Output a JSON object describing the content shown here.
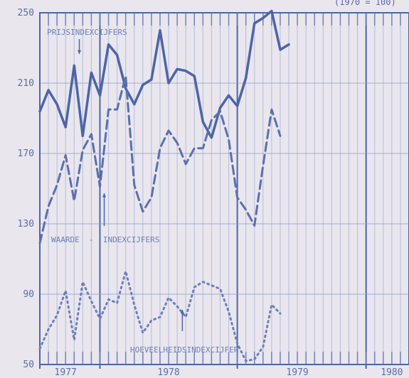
{
  "chart_data": {
    "type": "line",
    "corner_note": "(1970 = 100)",
    "ylim": [
      50,
      250
    ],
    "yticks": [
      50,
      90,
      130,
      170,
      210,
      250
    ],
    "ytick_labels": [
      "50",
      "90",
      "130",
      "170",
      "210",
      "250"
    ],
    "xlim": [
      0,
      43
    ],
    "year_labels": [
      {
        "label": "1977",
        "x": 3
      },
      {
        "label": "1978",
        "x": 15
      },
      {
        "label": "1979",
        "x": 30
      },
      {
        "label": "1980",
        "x": 41
      }
    ],
    "series": [
      {
        "name": "PRIJSINDEXCIJFERS",
        "style": "solid",
        "color": "#4d65a6",
        "x": [
          0,
          1,
          2,
          3,
          4,
          5,
          6,
          7,
          8,
          9,
          10,
          11,
          12,
          13,
          14,
          15,
          16,
          17,
          18,
          19,
          20,
          21,
          22,
          23,
          24,
          25,
          26,
          27,
          28,
          29,
          30,
          31,
          32,
          33,
          34
        ],
        "values": [
          194,
          206,
          198,
          185,
          220,
          180,
          216,
          203,
          232,
          226,
          207,
          198,
          209,
          212,
          240,
          210,
          218,
          217,
          214,
          188,
          179,
          196,
          203,
          197,
          213,
          244,
          247,
          251,
          229,
          232,
          null,
          null,
          null,
          null,
          null
        ]
      },
      {
        "name": "WAARDE - INDEXCIJFERS",
        "style": "dashed",
        "color": "#5a70ae",
        "x": [
          0,
          1,
          2,
          3,
          4,
          5,
          6,
          7,
          8,
          9,
          10,
          11,
          12,
          13,
          14,
          15,
          16,
          17,
          18,
          19,
          20,
          21,
          22,
          23,
          24,
          25,
          26,
          27,
          28,
          29,
          30
        ],
        "values": [
          119,
          140,
          152,
          169,
          143,
          172,
          181,
          151,
          195,
          195,
          214,
          152,
          137,
          145,
          173,
          183,
          176,
          164,
          173,
          173,
          189,
          194,
          178,
          145,
          138,
          129,
          163,
          195,
          180,
          null,
          null
        ]
      },
      {
        "name": "HOEVEELHEIDSINDEXCIJFER",
        "style": "dotted",
        "color": "#6b80b8",
        "x": [
          0,
          1,
          2,
          3,
          4,
          5,
          6,
          7,
          8,
          9,
          10,
          11,
          12,
          13,
          14,
          15,
          16,
          17,
          18,
          19,
          20,
          21,
          22,
          23,
          24,
          25,
          26,
          27,
          28,
          29
        ],
        "values": [
          59,
          70,
          78,
          92,
          64,
          97,
          86,
          76,
          87,
          85,
          103,
          84,
          68,
          75,
          77,
          88,
          83,
          77,
          94,
          97,
          95,
          93,
          80,
          62,
          52,
          53,
          60,
          84,
          79,
          null
        ]
      }
    ],
    "annotations": [
      {
        "text": "PRIJSINDEXCIJFERS"
      },
      {
        "text": "WAARDE  -  INDEXCIJFERS"
      },
      {
        "text": "HOEVEELHEIDSINDEXCIJFER"
      }
    ],
    "grid": true
  }
}
